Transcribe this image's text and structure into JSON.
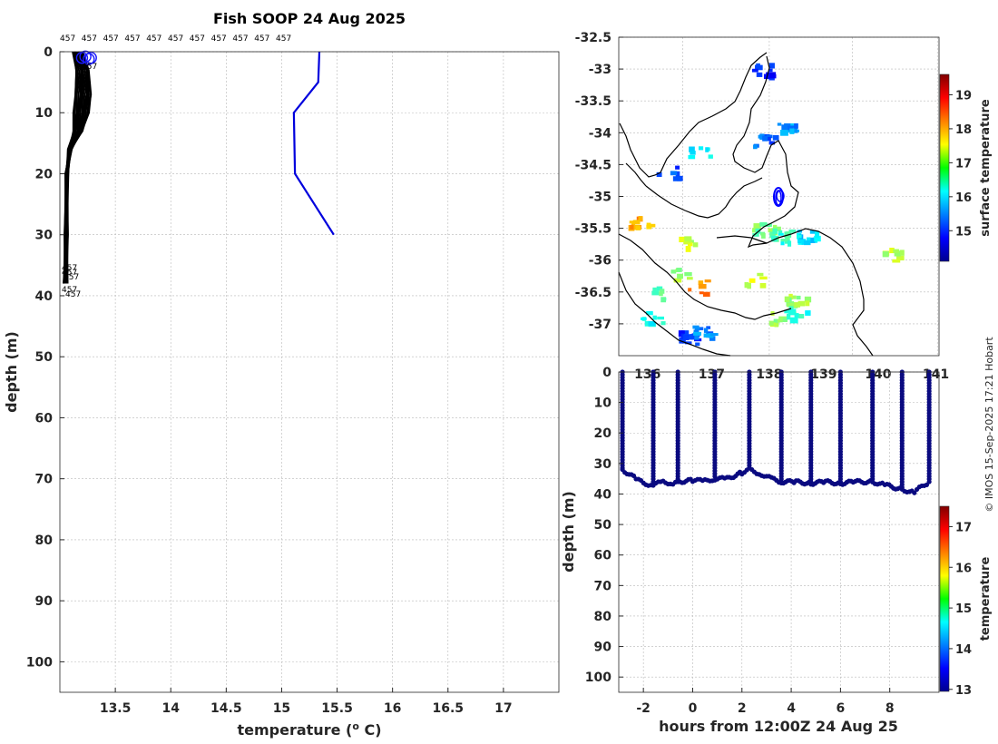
{
  "chart_data": [
    {
      "id": "profile",
      "type": "line",
      "title": "Fish SOOP 24 Aug 2025",
      "xlabel": "temperature (",
      "xlabel_sup": "o",
      "xlabel_end": " C)",
      "ylabel": "depth (m)",
      "xlim": [
        13.0,
        17.5
      ],
      "ylim": [
        0,
        105
      ],
      "xticks": [
        13.5,
        14,
        14.5,
        15,
        15.5,
        16,
        16.5,
        17
      ],
      "yticks": [
        0,
        10,
        20,
        30,
        40,
        50,
        60,
        70,
        80,
        90,
        100
      ],
      "top_labels": [
        "457",
        "457",
        "457",
        "457",
        "457",
        "457",
        "457",
        "457",
        "457",
        "457",
        "457"
      ],
      "bottom_labels": [
        "457",
        "457",
        "457",
        "457",
        "457",
        "457"
      ],
      "series": [
        {
          "name": "fish profile envelope (right edge)",
          "color": "#000000",
          "points": [
            [
              13.2,
              0
            ],
            [
              13.26,
              3
            ],
            [
              13.28,
              7
            ],
            [
              13.25,
              10
            ],
            [
              13.2,
              13
            ],
            [
              13.1,
              16
            ],
            [
              13.06,
              20
            ],
            [
              13.05,
              30
            ],
            [
              13.04,
              38
            ]
          ]
        },
        {
          "name": "reference profile",
          "color": "#0000dd",
          "points": [
            [
              15.34,
              0
            ],
            [
              15.33,
              5
            ],
            [
              15.11,
              10
            ],
            [
              15.12,
              20
            ],
            [
              15.47,
              30
            ]
          ]
        }
      ]
    },
    {
      "id": "map",
      "type": "heatmap",
      "colorbar_label": "surface temperature",
      "colorbar_ticks": [
        15,
        16,
        17,
        18,
        19
      ],
      "colorbar_range": [
        14.1,
        19.6
      ],
      "ylim": [
        -37.5,
        -32.5
      ],
      "yticks": [
        -32.5,
        -33,
        -33.5,
        -34,
        -34.5,
        -35,
        -35.5,
        -36,
        -36.5,
        -37
      ],
      "xticks_partial": [
        "136",
        "137",
        "138",
        "139",
        "140",
        "141"
      ],
      "patches": [
        {
          "lat": -34.1,
          "lon": 0.45,
          "temp": 15.3
        },
        {
          "lat": -33.9,
          "lon": 0.52,
          "temp": 15.6
        },
        {
          "lat": -34.3,
          "lon": 0.25,
          "temp": 16.2
        },
        {
          "lat": -34.6,
          "lon": 0.15,
          "temp": 15.2
        },
        {
          "lat": -35.4,
          "lon": 0.06,
          "temp": 18.0
        },
        {
          "lat": -35.7,
          "lon": 0.2,
          "temp": 17.2
        },
        {
          "lat": -36.2,
          "lon": 0.18,
          "temp": 17.1
        },
        {
          "lat": -36.4,
          "lon": 0.24,
          "temp": 18.2
        },
        {
          "lat": -36.5,
          "lon": 0.13,
          "temp": 16.6
        },
        {
          "lat": -36.9,
          "lon": 0.1,
          "temp": 16.2
        },
        {
          "lat": -37.2,
          "lon": 0.22,
          "temp": 15.0
        },
        {
          "lat": -37.1,
          "lon": 0.26,
          "temp": 15.5
        },
        {
          "lat": -36.3,
          "lon": 0.42,
          "temp": 17.3
        },
        {
          "lat": -36.6,
          "lon": 0.55,
          "temp": 17.0
        },
        {
          "lat": -36.9,
          "lon": 0.5,
          "temp": 17.0
        },
        {
          "lat": -36.8,
          "lon": 0.55,
          "temp": 16.3
        },
        {
          "lat": -35.5,
          "lon": 0.45,
          "temp": 16.8
        },
        {
          "lat": -35.6,
          "lon": 0.5,
          "temp": 16.4
        },
        {
          "lat": -35.6,
          "lon": 0.58,
          "temp": 16.0
        },
        {
          "lat": -33.0,
          "lon": 0.45,
          "temp": 15.0
        },
        {
          "lat": -35.9,
          "lon": 0.85,
          "temp": 17.2
        }
      ]
    },
    {
      "id": "timeseries",
      "type": "scatter",
      "colorbar_label": "temperature",
      "colorbar_ticks": [
        13,
        14,
        15,
        16,
        17
      ],
      "colorbar_range": [
        12.95,
        17.5
      ],
      "xlabel": "hours from 12:00Z 24 Aug 25",
      "ylabel": "depth (m)",
      "xlim": [
        -3,
        10
      ],
      "ylim": [
        0,
        105
      ],
      "xticks": [
        -2,
        0,
        2,
        4,
        6,
        8
      ],
      "yticks": [
        0,
        10,
        20,
        30,
        40,
        50,
        60,
        70,
        80,
        90,
        100
      ],
      "profiles": [
        {
          "t": -2.85,
          "bottom": 32
        },
        {
          "t": -1.6,
          "bottom": 37
        },
        {
          "t": -0.6,
          "bottom": 36
        },
        {
          "t": 0.9,
          "bottom": 35
        },
        {
          "t": 2.3,
          "bottom": 32
        },
        {
          "t": 3.6,
          "bottom": 36
        },
        {
          "t": 4.8,
          "bottom": 36
        },
        {
          "t": 6.0,
          "bottom": 36
        },
        {
          "t": 7.3,
          "bottom": 36
        },
        {
          "t": 8.5,
          "bottom": 38
        },
        {
          "t": 9.6,
          "bottom": 36
        }
      ],
      "floor_profile": [
        [
          -2.85,
          32
        ],
        [
          -2.3,
          35
        ],
        [
          -2.0,
          36.5
        ],
        [
          -1.6,
          37
        ],
        [
          -1.2,
          36
        ],
        [
          -0.8,
          36.5
        ],
        [
          -0.6,
          36
        ],
        [
          0,
          35.5
        ],
        [
          0.5,
          35.7
        ],
        [
          0.9,
          35
        ],
        [
          1.4,
          35
        ],
        [
          2.0,
          33
        ],
        [
          2.3,
          32
        ],
        [
          2.8,
          33.5
        ],
        [
          3.2,
          35
        ],
        [
          3.6,
          36
        ],
        [
          4.2,
          36
        ],
        [
          4.8,
          36.5
        ],
        [
          5.4,
          36
        ],
        [
          6.0,
          36.5
        ],
        [
          6.6,
          36
        ],
        [
          7.3,
          36
        ],
        [
          7.8,
          37
        ],
        [
          8.5,
          38.5
        ],
        [
          9.0,
          39.5
        ],
        [
          9.3,
          37.5
        ],
        [
          9.6,
          36
        ]
      ]
    }
  ],
  "footer": {
    "credit": "© IMOS 15-Sep-2025 17:21 Hobart"
  }
}
